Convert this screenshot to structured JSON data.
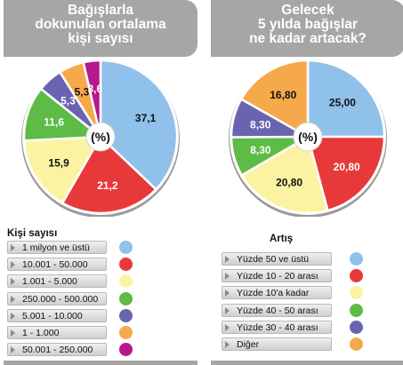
{
  "chart_data": [
    {
      "type": "pie",
      "title": [
        "Bağışlarla",
        "dokunulan ortalama",
        "kişi sayısı"
      ],
      "center_label": "(%)",
      "legend_title": "Kişi sayısı",
      "categories": [
        "1 milyon ve üstü",
        "10.001 - 50.000",
        "1.001 - 5.000",
        "250.000 - 500.000",
        "5.001 - 10.000",
        "1 - 1.000",
        "50.001 - 250.000"
      ],
      "values": [
        37.1,
        21.2,
        15.9,
        11.6,
        5.3,
        5.3,
        3.6
      ],
      "labels": [
        "37,1",
        "21,2",
        "15,9",
        "11,6",
        "5,3",
        "5,3",
        "3,6"
      ],
      "colors": [
        "#8fc1ea",
        "#e8393a",
        "#fbf3a2",
        "#5dbb46",
        "#6a64b0",
        "#f6a94a",
        "#b5198c"
      ],
      "label_colors": [
        "#111111",
        "#ffffff",
        "#111111",
        "#ffffff",
        "#ffffff",
        "#111111",
        "#ffffff"
      ]
    },
    {
      "type": "pie",
      "title": [
        "Gelecek",
        "5 yılda bağışlar",
        "ne kadar artacak?"
      ],
      "center_label": "(%)",
      "legend_title": "Artış",
      "categories": [
        "Yüzde 50 ve üstü",
        "Yüzde 10 - 20 arası",
        "Yüzde 10'a kadar",
        "Yüzde 40 - 50 arası",
        "Yüzde 30 - 40 arası",
        "Diğer"
      ],
      "values": [
        25.0,
        20.8,
        20.8,
        8.3,
        8.3,
        16.8
      ],
      "labels": [
        "25,00",
        "20,80",
        "20,80",
        "8,30",
        "8,30",
        "16,80"
      ],
      "colors": [
        "#8fc1ea",
        "#e8393a",
        "#fbf3a2",
        "#5dbb46",
        "#6a64b0",
        "#f6a94a"
      ],
      "label_colors": [
        "#111111",
        "#ffffff",
        "#111111",
        "#ffffff",
        "#ffffff",
        "#111111"
      ]
    }
  ]
}
